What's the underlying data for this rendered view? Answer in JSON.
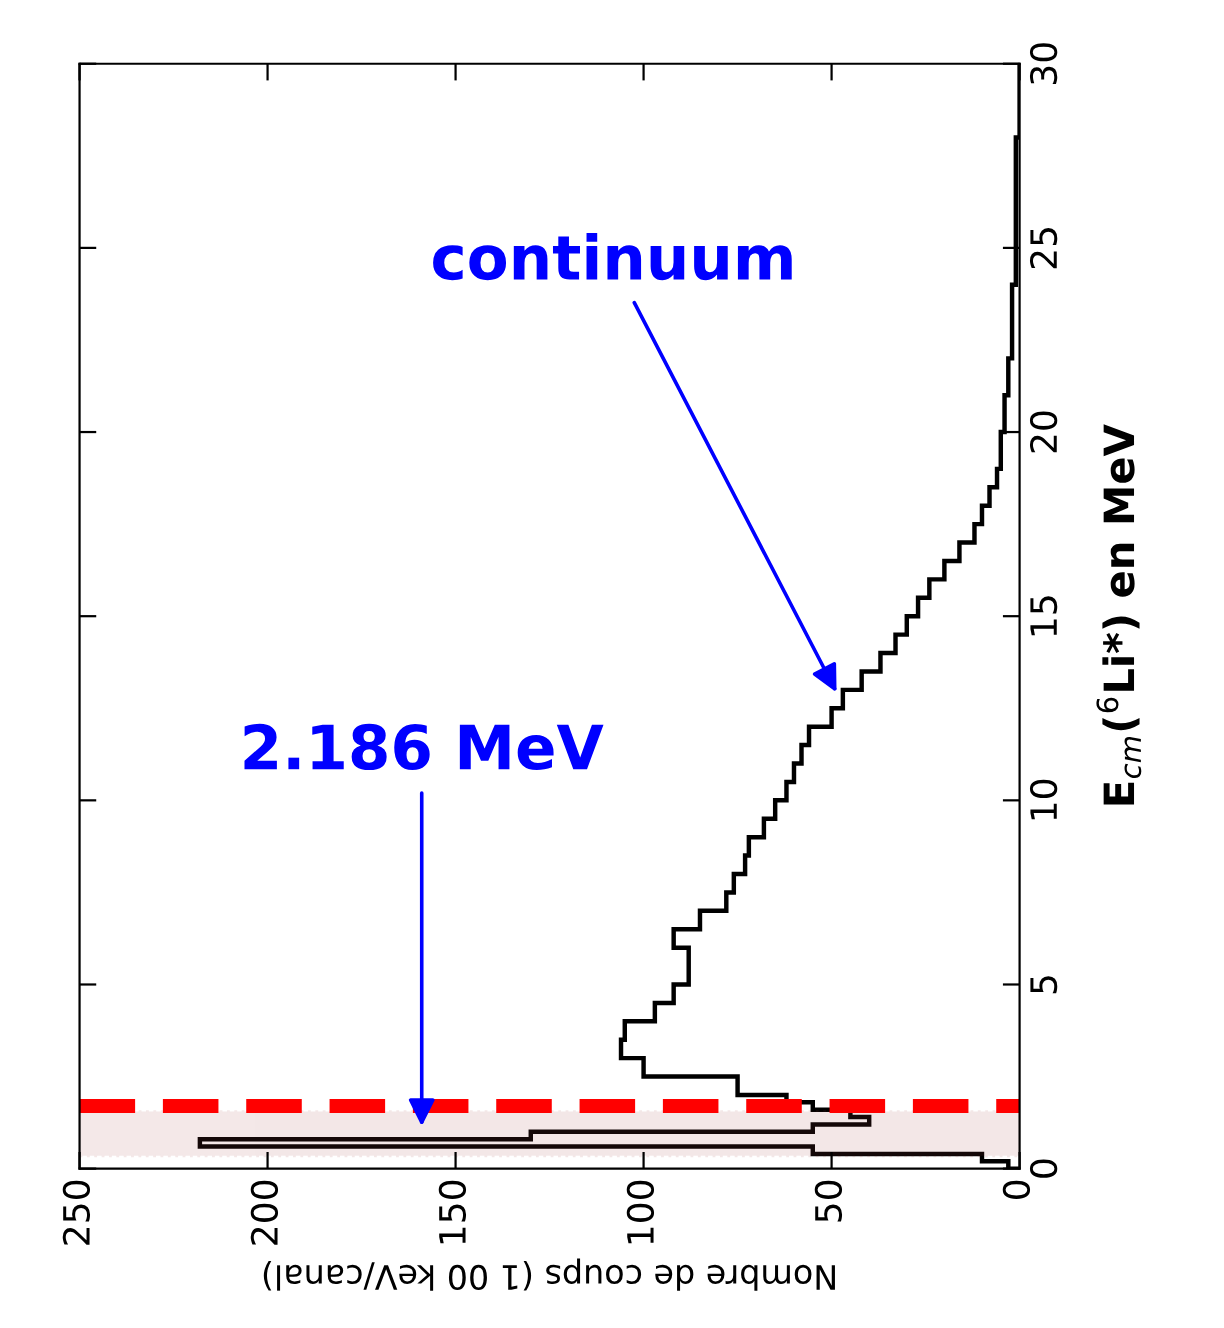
{
  "chart_data": {
    "type": "histogram",
    "orientation": "horizontal",
    "xlabel": "Nombre de coups (1 00 keV/canal)",
    "ylabel": "E$_{cm}$($^{6}$Li*) en MeV",
    "bins": [
      0,
      0.2,
      0.4,
      0.6,
      0.8,
      1.0,
      1.2,
      1.4,
      1.6,
      1.8,
      2.0,
      2.5,
      3,
      3.5,
      4,
      4.5,
      5,
      5.5,
      6,
      6.5,
      7,
      7.5,
      8,
      8.5,
      9,
      9.5,
      10,
      10.5,
      11,
      11.5,
      12,
      12.5,
      13,
      13.5,
      14,
      14.5,
      15,
      15.5,
      16,
      16.5,
      17,
      17.5,
      18,
      18.5,
      19,
      20,
      21,
      22,
      23,
      24,
      26,
      28,
      30
    ],
    "values": [
      3,
      10,
      55,
      218,
      130,
      55,
      40,
      45,
      55,
      62,
      75,
      100,
      106,
      105,
      97,
      92,
      88,
      88,
      92,
      85,
      78,
      76,
      73,
      72,
      68,
      65,
      62,
      60,
      58,
      56,
      50,
      47,
      42,
      37,
      33,
      30,
      27,
      24,
      20,
      16,
      12,
      10,
      8,
      6,
      5,
      4,
      3,
      2,
      2,
      1,
      1,
      0
    ],
    "color": "#000000",
    "xlim": [
      250,
      0
    ],
    "xticks": [
      0,
      50,
      100,
      150,
      200,
      250
    ],
    "ylim": [
      0,
      30
    ],
    "yticks": [
      0,
      5,
      10,
      15,
      20,
      25,
      30
    ],
    "grid": false,
    "legend": false,
    "ref_lines": [
      {
        "axis": "y",
        "value": 1.7,
        "color": "#ff0000",
        "line_style": "dashed"
      }
    ],
    "bands": [
      {
        "axis": "y",
        "from": 0.35,
        "to": 1.55,
        "color": "#a04040"
      }
    ],
    "annotations": [
      {
        "text": "continuum",
        "x": 48,
        "y": 12.8
      },
      {
        "text": "2.186 MeV",
        "x": 159,
        "y": 1.0
      }
    ]
  }
}
